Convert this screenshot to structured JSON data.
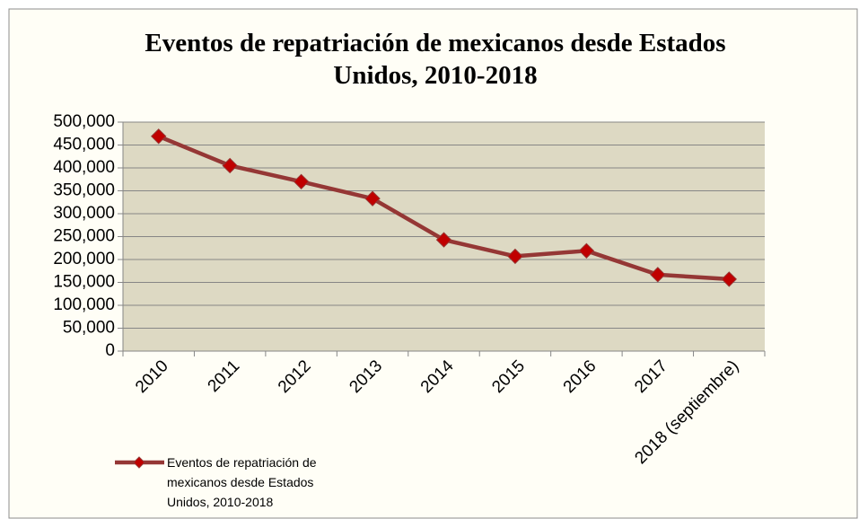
{
  "chart_data": {
    "type": "line",
    "title": "Eventos de repatriación de mexicanos desde Estados Unidos, 2010-2018",
    "categories": [
      "2010",
      "2011",
      "2012",
      "2013",
      "2014",
      "2015",
      "2016",
      "2017",
      "2018 (septiembre)"
    ],
    "series": [
      {
        "name": "Eventos de repatriación de mexicanos desde Estados Unidos, 2010-2018",
        "color": "#953735",
        "marker_color": "#c00000",
        "values": [
          469000,
          405000,
          370000,
          333000,
          243000,
          207000,
          219000,
          167000,
          157000
        ]
      }
    ],
    "ylim": [
      0,
      500000
    ],
    "yticks": [
      0,
      {
        "value": 50000,
        "label": "50,000"
      },
      {
        "value": 100000,
        "label": "100,000"
      },
      {
        "value": 150000,
        "label": "150,000"
      },
      {
        "value": 200000,
        "label": "200,000"
      },
      {
        "value": 250000,
        "label": "250,000"
      },
      {
        "value": 300000,
        "label": "300,000"
      },
      {
        "value": 350000,
        "label": "350,000"
      },
      {
        "value": 400000,
        "label": "400,000"
      },
      {
        "value": 450000,
        "label": "450,000"
      },
      {
        "value": 500000,
        "label": "500,000"
      }
    ],
    "grid": true,
    "legend": "bottom-left"
  }
}
